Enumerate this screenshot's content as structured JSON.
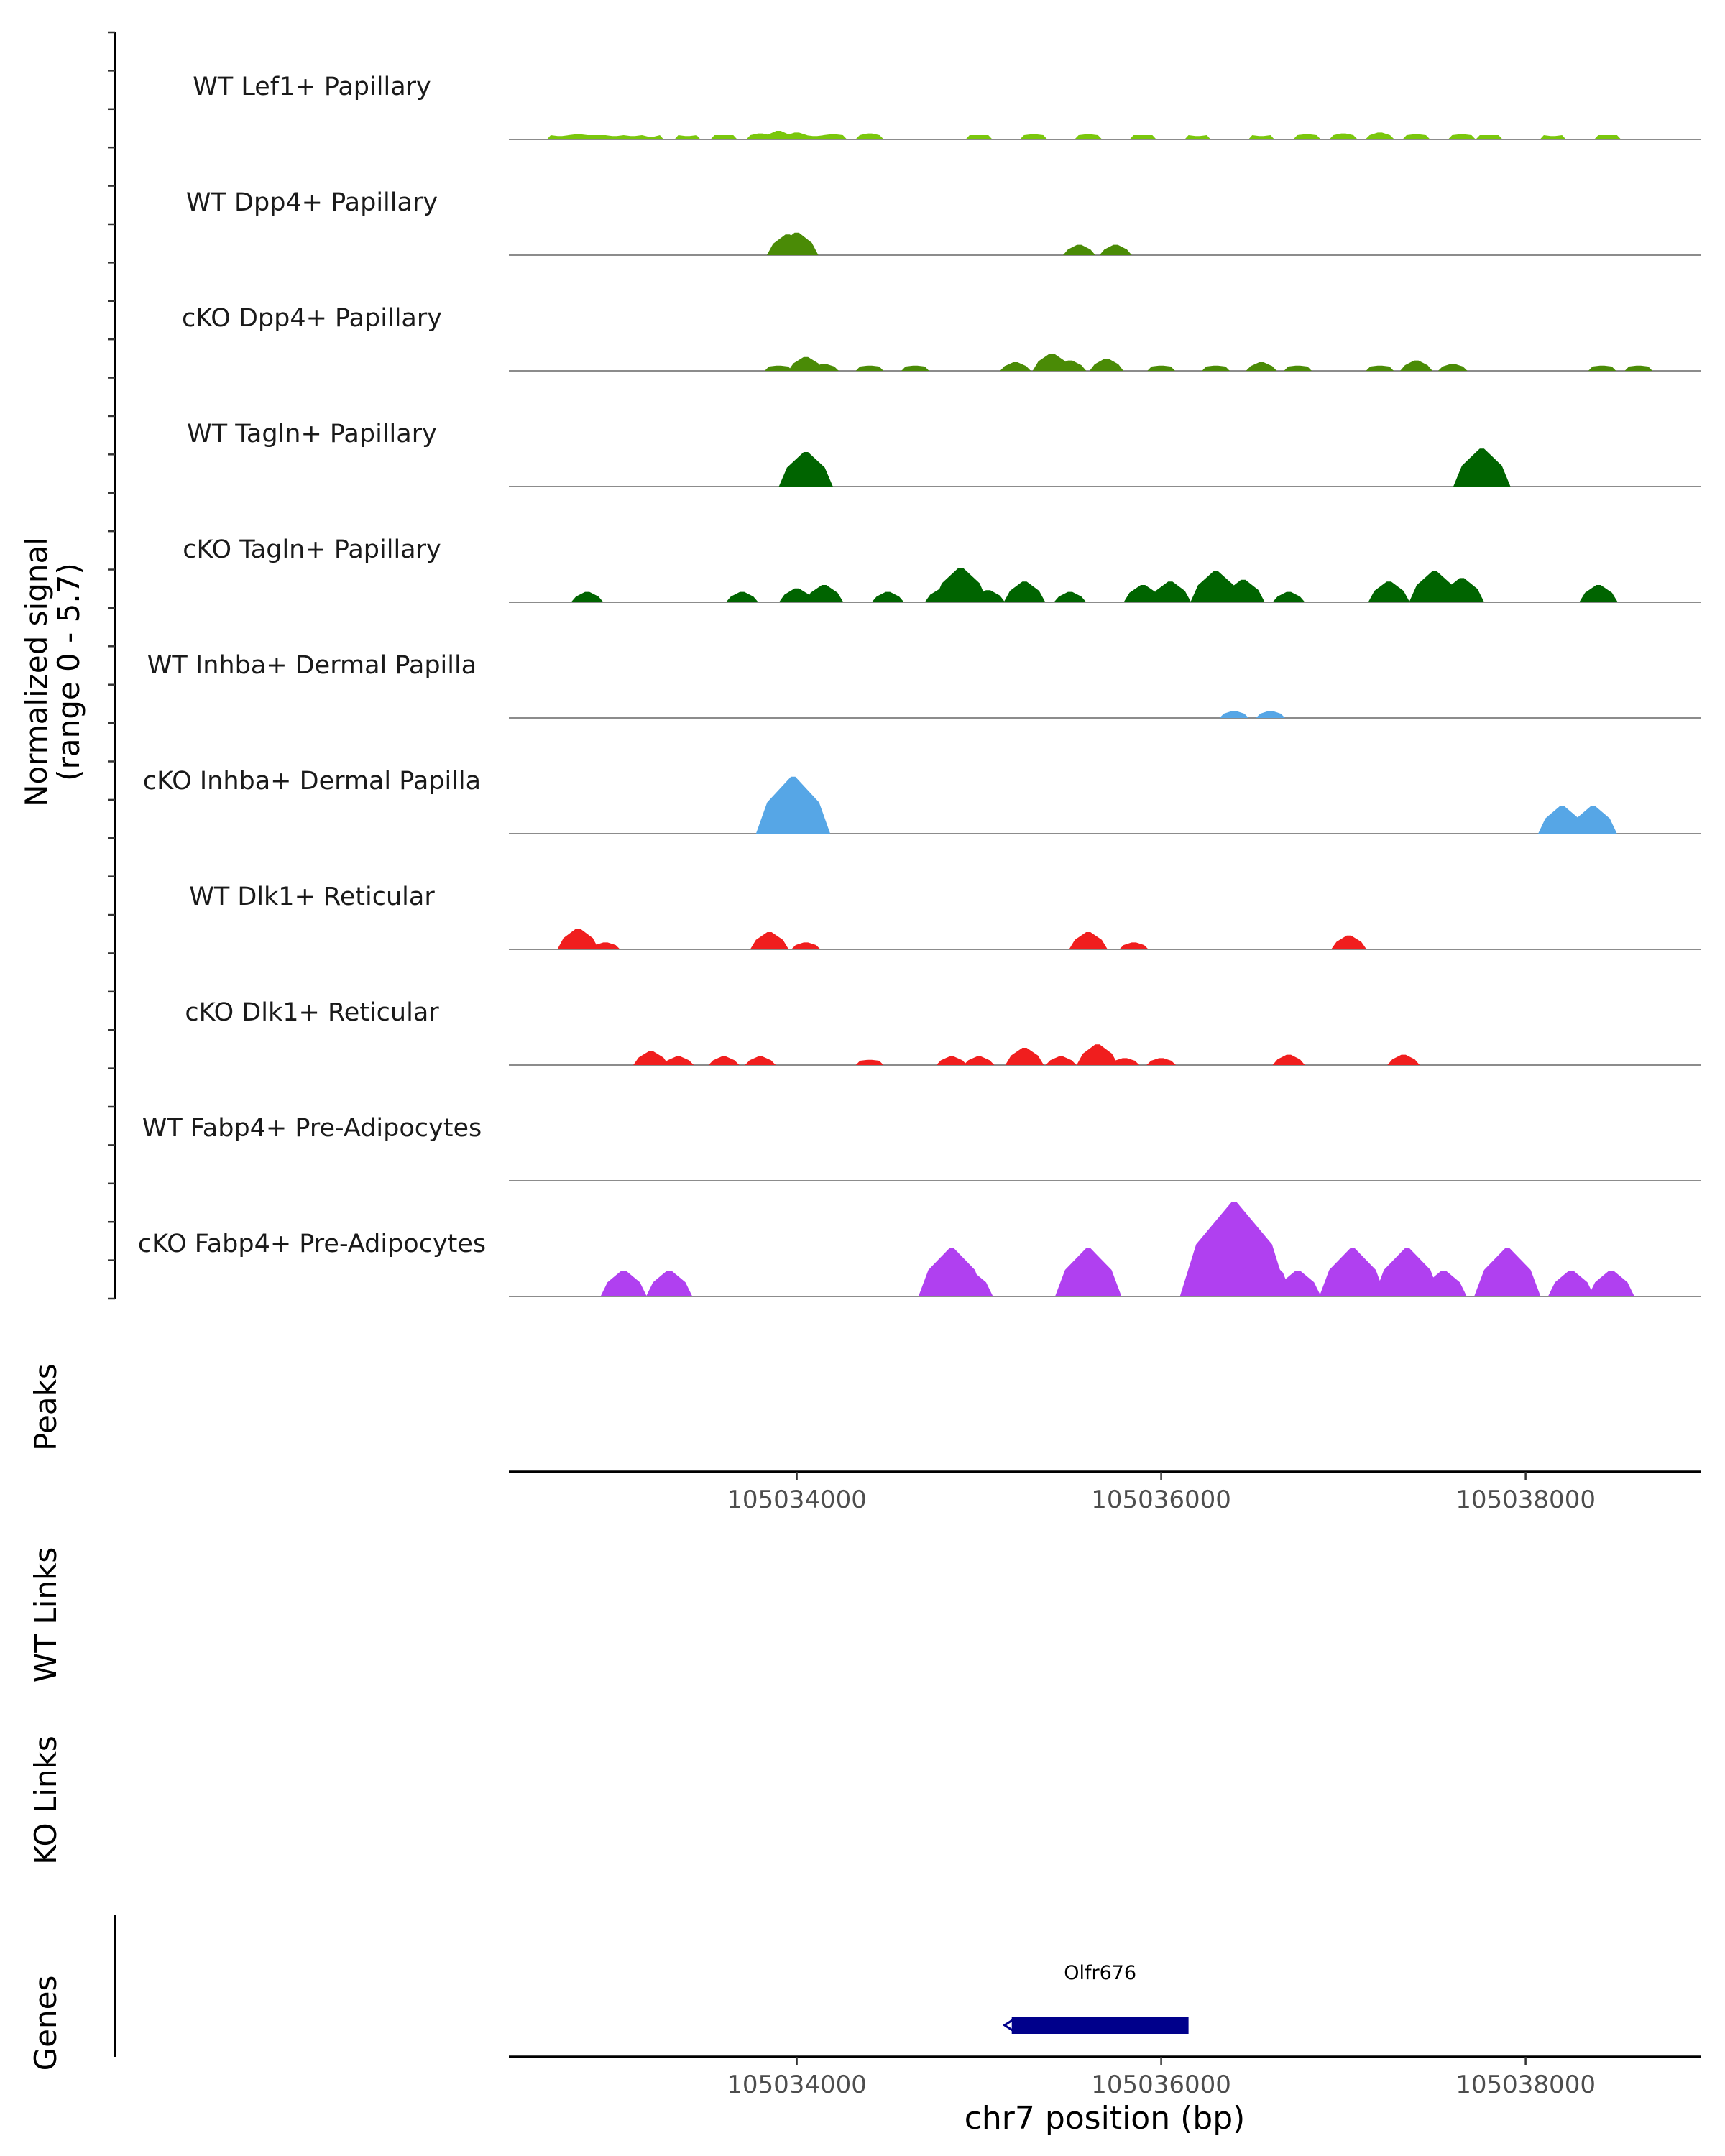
{
  "chart_data": {
    "type": "area",
    "title": "",
    "chromosome": "chr7",
    "xlabel": "chr7 position (bp)",
    "xlim": [
      105032420,
      105038960
    ],
    "x_ticks": [
      105034000,
      105036000,
      105038000
    ],
    "x_tick_labels": [
      "105034000",
      "105036000",
      "105038000"
    ],
    "signal_axis_label": "Normalized signal",
    "signal_range_label": "(range 0 - 5.7)",
    "ylim": [
      0,
      5.7
    ],
    "panel_labels": {
      "peaks": "Peaks",
      "wt_links": "WT Links",
      "ko_links": "KO Links",
      "genes": "Genes"
    },
    "series": [
      {
        "name": "WT Lef1+ Papillary",
        "color": "#7ac70c",
        "x": [
          105032700,
          105032800,
          105032900,
          105033000,
          105033100,
          105033200,
          105033400,
          105033600,
          105033800,
          105033900,
          105034000,
          105034100,
          105034200,
          105034400,
          105035000,
          105035300,
          105035600,
          105035900,
          105036200,
          105036550,
          105036800,
          105037000,
          105037200,
          105037400,
          105037650,
          105037800,
          105038150,
          105038450
        ],
        "values": [
          0.2,
          0.3,
          0.25,
          0.2,
          0.2,
          0.15,
          0.2,
          0.25,
          0.35,
          0.5,
          0.4,
          0.2,
          0.3,
          0.35,
          0.25,
          0.3,
          0.3,
          0.25,
          0.2,
          0.2,
          0.3,
          0.35,
          0.4,
          0.3,
          0.3,
          0.25,
          0.2,
          0.25
        ]
      },
      {
        "name": "WT Dpp4+ Papillary",
        "color": "#4a8b06",
        "x": [
          105033950,
          105034000,
          105035550,
          105035750
        ],
        "values": [
          1.2,
          1.3,
          0.6,
          0.6
        ]
      },
      {
        "name": "cKO Dpp4+ Papillary",
        "color": "#4a8b06",
        "x": [
          105033900,
          105034050,
          105034150,
          105034400,
          105034650,
          105035200,
          105035400,
          105035500,
          105035700,
          105036000,
          105036300,
          105036550,
          105036750,
          105037200,
          105037400,
          105037600,
          105038420,
          105038620
        ],
        "values": [
          0.3,
          0.8,
          0.4,
          0.3,
          0.3,
          0.5,
          1.0,
          0.6,
          0.7,
          0.3,
          0.3,
          0.5,
          0.3,
          0.3,
          0.6,
          0.4,
          0.3,
          0.3
        ]
      },
      {
        "name": "WT Tagln+ Papillary",
        "color": "#006400",
        "x": [
          105034050,
          105037760
        ],
        "values": [
          2.0,
          2.2
        ]
      },
      {
        "name": "cKO Tagln+ Papillary",
        "color": "#006400",
        "x": [
          105032850,
          105033700,
          105034000,
          105034150,
          105034500,
          105034800,
          105034900,
          105035050,
          105035250,
          105035500,
          105035900,
          105036050,
          105036300,
          105036450,
          105036700,
          105037250,
          105037500,
          105037650,
          105038400
        ],
        "values": [
          0.6,
          0.6,
          0.8,
          1.0,
          0.6,
          0.8,
          2.0,
          0.7,
          1.2,
          0.6,
          1.0,
          1.2,
          1.8,
          1.3,
          0.6,
          1.2,
          1.8,
          1.4,
          1.0
        ]
      },
      {
        "name": "WT Inhba+ Dermal Papilla",
        "color": "#56a6e6",
        "x": [
          105036400,
          105036600
        ],
        "values": [
          0.4,
          0.4
        ]
      },
      {
        "name": "cKO Inhba+ Dermal Papilla",
        "color": "#56a6e6",
        "x": [
          105033980,
          105038200,
          105038370
        ],
        "values": [
          3.3,
          1.6,
          1.6
        ]
      },
      {
        "name": "WT Dlk1+ Reticular",
        "color": "#f01e1e",
        "x": [
          105032800,
          105032950,
          105033850,
          105034050,
          105035600,
          105035850,
          105037030
        ],
        "values": [
          1.2,
          0.4,
          1.0,
          0.4,
          1.0,
          0.4,
          0.8
        ]
      },
      {
        "name": "cKO Dlk1+ Reticular",
        "color": "#f01e1e",
        "x": [
          105033200,
          105033350,
          105033600,
          105033800,
          105034400,
          105034850,
          105035000,
          105035250,
          105035450,
          105035650,
          105035800,
          105036000,
          105036700,
          105037330
        ],
        "values": [
          0.8,
          0.5,
          0.5,
          0.5,
          0.3,
          0.5,
          0.5,
          1.0,
          0.5,
          1.2,
          0.4,
          0.4,
          0.6,
          0.6
        ]
      },
      {
        "name": "WT Fabp4+ Pre-Adipocytes",
        "color": "#b040f0",
        "x": [],
        "values": []
      },
      {
        "name": "cKO Fabp4+ Pre-Adipocytes",
        "color": "#b040f0",
        "x": [
          105033050,
          105033300,
          105034850,
          105034950,
          105035600,
          105036350,
          105036400,
          105036450,
          105036550,
          105036750,
          105037050,
          105037350,
          105037550,
          105037900,
          105038250,
          105038470
        ],
        "values": [
          1.5,
          1.5,
          2.8,
          1.5,
          2.8,
          4.0,
          5.5,
          3.2,
          2.5,
          1.5,
          2.8,
          2.8,
          1.5,
          2.8,
          1.5,
          1.5
        ]
      }
    ],
    "genes": [
      {
        "name": "Olfr676",
        "start": 105035180,
        "end": 105036150,
        "strand": "-"
      }
    ]
  }
}
